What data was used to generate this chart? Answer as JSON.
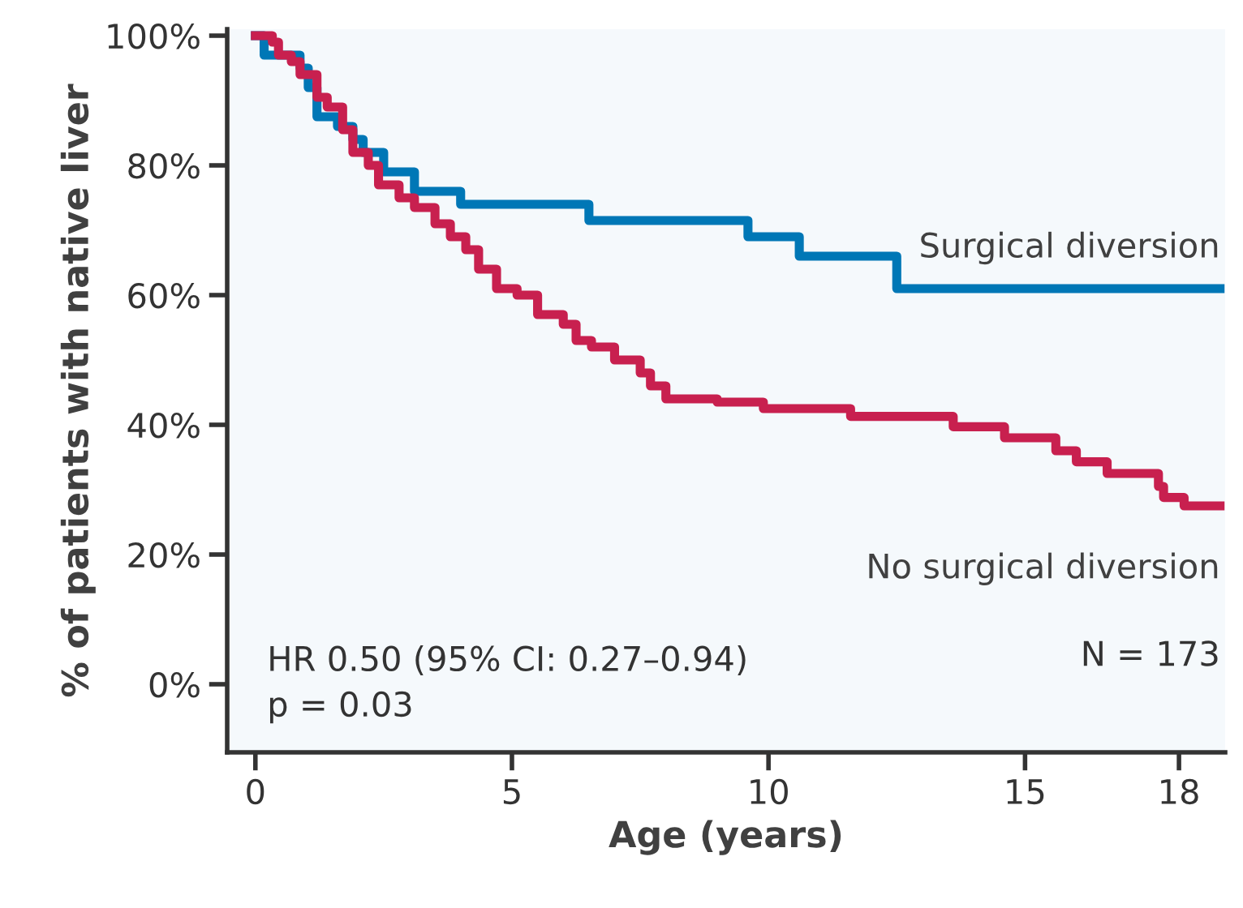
{
  "chart_data": {
    "type": "step",
    "xlabel": "Age (years)",
    "ylabel": "% of patients with native liver",
    "xlim": [
      -0.55,
      18.9
    ],
    "xticks": [
      0,
      5,
      10,
      15,
      18
    ],
    "ylim": [
      -10.5,
      101
    ],
    "yticks": [
      {
        "value": 0,
        "label": "0%"
      },
      {
        "value": 20,
        "label": "20%"
      },
      {
        "value": 40,
        "label": "40%"
      },
      {
        "value": 60,
        "label": "60%"
      },
      {
        "value": 80,
        "label": "80%"
      },
      {
        "value": 100,
        "label": "100%"
      }
    ],
    "grid": false,
    "legend": false,
    "marker": "none",
    "line_style": "solid",
    "series": [
      {
        "name": "Surgical diversion",
        "color": "#0077b6",
        "x": [
          0,
          0.17,
          0.87,
          1.03,
          1.2,
          1.6,
          1.9,
          2.1,
          2.5,
          3.1,
          4.0,
          6.5,
          9.6,
          10.6,
          12.5,
          18.8
        ],
        "values": [
          100,
          97,
          95,
          92,
          87.5,
          86,
          84,
          82,
          79,
          76,
          74,
          71.5,
          69,
          66,
          61,
          61
        ]
      },
      {
        "name": "No surgical diversion",
        "color": "#c8204f",
        "x": [
          0,
          0.33,
          0.45,
          0.7,
          0.87,
          1.2,
          1.4,
          1.7,
          1.9,
          2.2,
          2.4,
          2.8,
          3.1,
          3.5,
          3.8,
          4.1,
          4.35,
          4.7,
          5.1,
          5.5,
          6.0,
          6.25,
          6.55,
          7.0,
          7.5,
          7.7,
          8.0,
          9.0,
          9.9,
          11.6,
          13.6,
          14.6,
          15.6,
          16.0,
          16.6,
          17.6,
          17.7,
          18.1,
          18.8
        ],
        "values": [
          100,
          99,
          97,
          96,
          94,
          90.5,
          89,
          85.5,
          82,
          80,
          77,
          75,
          73.5,
          71,
          69,
          67,
          64,
          61,
          60,
          57,
          55.5,
          53,
          52,
          50,
          48,
          46,
          44,
          43.5,
          42.5,
          41.3,
          39.7,
          38,
          36,
          34.3,
          32.5,
          30.5,
          28.8,
          27.5,
          27.5
        ]
      }
    ],
    "annotations": [
      "HR 0.50 (95% CI: 0.27–0.94)\np = 0.03",
      "N = 173"
    ]
  }
}
